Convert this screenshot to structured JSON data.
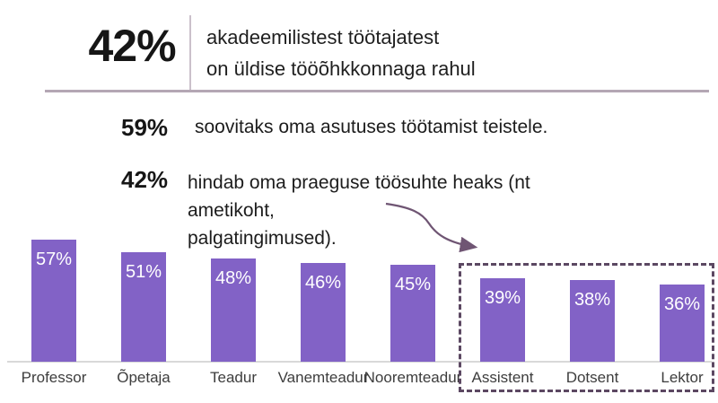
{
  "header": {
    "stat_value": "42%",
    "line1": "akadeemilistest töötajatest",
    "line2": "on üldise tööõhkkonnaga rahul"
  },
  "facts": [
    {
      "value": "59%",
      "line1": "soovitaks oma asutuses töötamist teistele.",
      "line2": ""
    },
    {
      "value": "42%",
      "line1": "hindab oma praeguse töösuhte heaks (nt ametikoht,",
      "line2": "palgatingimused)."
    }
  ],
  "chart_data": {
    "type": "bar",
    "categories": [
      "Professor",
      "Õpetaja",
      "Teadur",
      "Vanemteadur",
      "Nooremteadur",
      "Assistent",
      "Dotsent",
      "Lektor"
    ],
    "values": [
      57,
      51,
      48,
      46,
      45,
      39,
      38,
      36
    ],
    "value_labels": [
      "57%",
      "51%",
      "48%",
      "46%",
      "45%",
      "39%",
      "38%",
      "36%"
    ],
    "title": "",
    "xlabel": "",
    "ylabel": "",
    "ylim": [
      0,
      62
    ],
    "grid": false,
    "legend": false,
    "data_labels_position": "inside-end",
    "highlighted_categories": [
      "Assistent",
      "Dotsent",
      "Lektor"
    ],
    "highlight_style": "dashed-box"
  },
  "colors": {
    "bar_fill": "#8262c6",
    "bar_label": "#ffffff",
    "dashed_box_border": "#5c4862",
    "arrow_stroke": "#6f5573",
    "header_rule": "#b4a7b4",
    "vertical_divider": "#cbc0cb",
    "axis_line": "#d9d9d9",
    "category_text": "#3d3d3d",
    "body_text": "#1c1c1c"
  }
}
